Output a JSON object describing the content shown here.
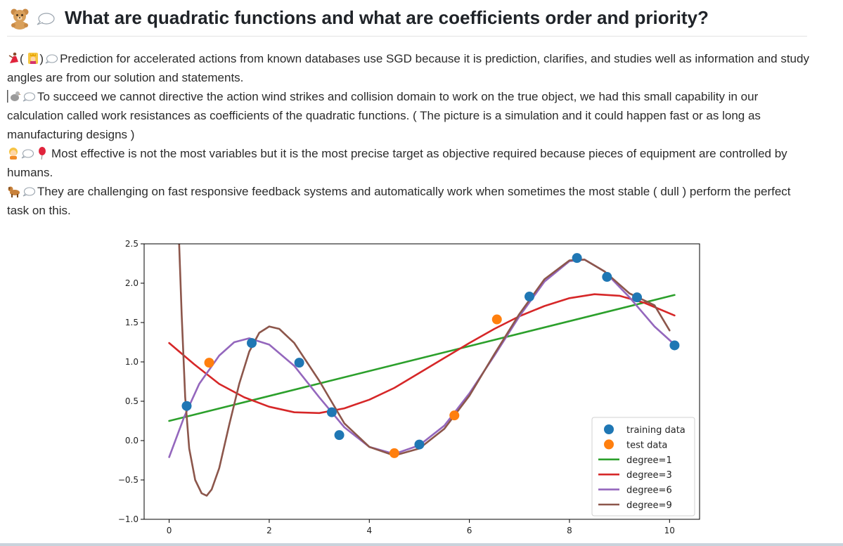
{
  "post": {
    "title": "What are quadratic functions and what are coefficients order and priority?",
    "paragraphs": [
      {
        "pre": "(",
        "mid": ")",
        "text": "Prediction for accelerated actions from known databases use SGD because it is prediction, clarifies, and studies well as information and study angles are from our solution and statements."
      },
      {
        "text": "To succeed we cannot directive the action wind strikes and collision domain to work on the true object, we had this small capability in our calculation called work resistances as coefficients of the quadratic functions. ( The picture is a simulation and it could happen fast or as long as manufacturing designs )"
      },
      {
        "text": "Most effective is not the most variables but it is the most precise target as objective required because pieces of equipment are controlled by humans."
      },
      {
        "text": "They are challenging on fast responsive feedback systems and automatically work when sometimes the most stable ( dull ) perform the perfect task on this."
      }
    ],
    "icons": [
      "bear-icon",
      "speech-bubble-icon",
      "dancer-icon",
      "princess-icon",
      "dodo-icon",
      "child-icon",
      "balloon-icon",
      "dog-icon"
    ]
  },
  "chart_data": {
    "type": "scatter",
    "xlim": [
      -0.5,
      10.6
    ],
    "ylim": [
      -1.0,
      2.5
    ],
    "xticks": [
      "0",
      "2",
      "4",
      "6",
      "8",
      "10"
    ],
    "yticks": [
      "−1.0",
      "−0.5",
      "0.0",
      "0.5",
      "1.0",
      "1.5",
      "2.0",
      "2.5"
    ],
    "legend_position": "lower-right",
    "grid": false,
    "colors": {
      "training data": "#1f77b4",
      "test data": "#ff7f0e",
      "degree=1": "#2ca02c",
      "degree=3": "#d62728",
      "degree=6": "#9467bd",
      "degree=9": "#8c564b"
    },
    "scatter_series": [
      {
        "name": "training data",
        "points": [
          [
            0.35,
            0.44
          ],
          [
            1.65,
            1.24
          ],
          [
            2.6,
            0.99
          ],
          [
            3.25,
            0.36
          ],
          [
            3.4,
            0.07
          ],
          [
            5.0,
            -0.05
          ],
          [
            7.2,
            1.83
          ],
          [
            8.15,
            2.32
          ],
          [
            8.75,
            2.08
          ],
          [
            9.35,
            1.82
          ],
          [
            10.1,
            1.21
          ]
        ]
      },
      {
        "name": "test data",
        "points": [
          [
            0.8,
            0.99
          ],
          [
            4.5,
            -0.16
          ],
          [
            5.7,
            0.32
          ],
          [
            6.55,
            1.54
          ]
        ]
      }
    ],
    "line_series": [
      {
        "name": "degree=1",
        "points": [
          [
            0.0,
            0.25
          ],
          [
            10.1,
            1.85
          ]
        ]
      },
      {
        "name": "degree=3",
        "points": [
          [
            0.0,
            1.24
          ],
          [
            0.5,
            0.97
          ],
          [
            1.0,
            0.72
          ],
          [
            1.5,
            0.55
          ],
          [
            2.0,
            0.43
          ],
          [
            2.5,
            0.36
          ],
          [
            3.0,
            0.35
          ],
          [
            3.5,
            0.41
          ],
          [
            4.0,
            0.52
          ],
          [
            4.5,
            0.67
          ],
          [
            5.0,
            0.86
          ],
          [
            5.5,
            1.05
          ],
          [
            6.0,
            1.24
          ],
          [
            6.5,
            1.42
          ],
          [
            7.0,
            1.58
          ],
          [
            7.5,
            1.71
          ],
          [
            8.0,
            1.81
          ],
          [
            8.5,
            1.86
          ],
          [
            9.0,
            1.84
          ],
          [
            9.5,
            1.75
          ],
          [
            10.1,
            1.59
          ]
        ]
      },
      {
        "name": "degree=6",
        "points": [
          [
            0.0,
            -0.21
          ],
          [
            0.3,
            0.3
          ],
          [
            0.6,
            0.72
          ],
          [
            1.0,
            1.08
          ],
          [
            1.3,
            1.25
          ],
          [
            1.6,
            1.3
          ],
          [
            2.0,
            1.22
          ],
          [
            2.5,
            0.95
          ],
          [
            3.0,
            0.55
          ],
          [
            3.5,
            0.17
          ],
          [
            4.0,
            -0.08
          ],
          [
            4.5,
            -0.17
          ],
          [
            5.0,
            -0.06
          ],
          [
            5.5,
            0.19
          ],
          [
            6.0,
            0.6
          ],
          [
            6.5,
            1.08
          ],
          [
            7.0,
            1.58
          ],
          [
            7.5,
            2.02
          ],
          [
            8.0,
            2.28
          ],
          [
            8.3,
            2.3
          ],
          [
            8.7,
            2.15
          ],
          [
            9.2,
            1.82
          ],
          [
            9.7,
            1.45
          ],
          [
            10.1,
            1.22
          ]
        ]
      },
      {
        "name": "degree=9",
        "points": [
          [
            0.2,
            2.5
          ],
          [
            0.25,
            1.6
          ],
          [
            0.32,
            0.55
          ],
          [
            0.4,
            -0.1
          ],
          [
            0.52,
            -0.5
          ],
          [
            0.65,
            -0.67
          ],
          [
            0.75,
            -0.7
          ],
          [
            0.85,
            -0.62
          ],
          [
            1.0,
            -0.35
          ],
          [
            1.2,
            0.2
          ],
          [
            1.4,
            0.72
          ],
          [
            1.6,
            1.13
          ],
          [
            1.8,
            1.37
          ],
          [
            2.0,
            1.45
          ],
          [
            2.2,
            1.42
          ],
          [
            2.5,
            1.24
          ],
          [
            3.0,
            0.76
          ],
          [
            3.5,
            0.22
          ],
          [
            4.0,
            -0.08
          ],
          [
            4.5,
            -0.19
          ],
          [
            5.0,
            -0.1
          ],
          [
            5.5,
            0.15
          ],
          [
            6.0,
            0.57
          ],
          [
            6.5,
            1.1
          ],
          [
            7.0,
            1.61
          ],
          [
            7.5,
            2.05
          ],
          [
            8.0,
            2.29
          ],
          [
            8.3,
            2.3
          ],
          [
            8.7,
            2.15
          ],
          [
            9.2,
            1.87
          ],
          [
            9.7,
            1.72
          ],
          [
            10.0,
            1.4
          ]
        ]
      }
    ]
  }
}
